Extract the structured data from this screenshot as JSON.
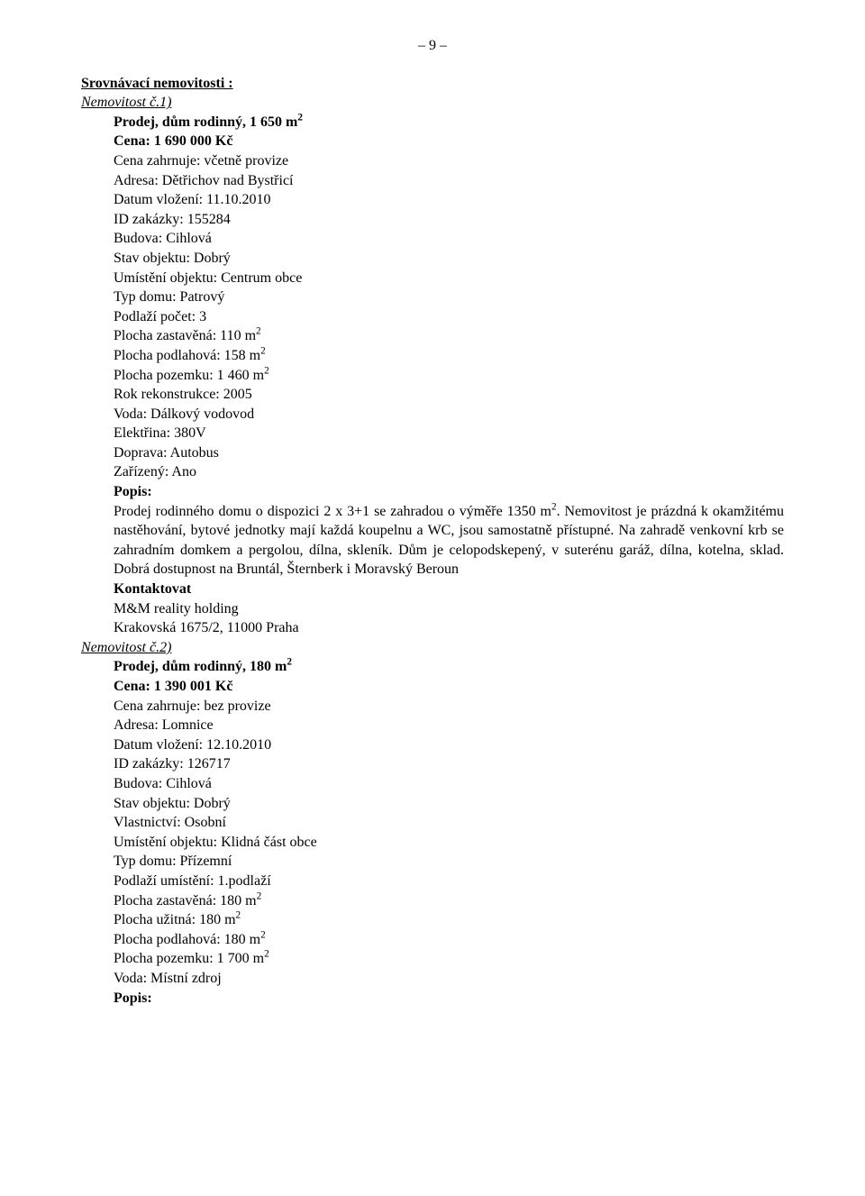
{
  "page_number": "– 9 –",
  "section_title": "Srovnávací nemovitosti :",
  "property1": {
    "heading": "Nemovitost č.1)",
    "title_prefix": "Prodej, dům rodinný, 1 650 m",
    "title_sup": "2",
    "price": "Cena: 1 690 000 Kč",
    "price_includes": "Cena zahrnuje: včetně provize",
    "address": "Adresa: Dětřichov nad Bystřicí",
    "date": "Datum vložení: 11.10.2010",
    "id": "ID zakázky: 155284",
    "building": "Budova: Cihlová",
    "condition": "Stav objektu: Dobrý",
    "location": "Umístění objektu: Centrum obce",
    "house_type": "Typ domu: Patrový",
    "floors": "Podlaží počet: 3",
    "built_area_prefix": "Plocha zastavěná: 110 m",
    "built_area_sup": "2",
    "floor_area_prefix": "Plocha podlahová: 158 m",
    "floor_area_sup": "2",
    "land_area_prefix": "Plocha pozemku: 1 460 m",
    "land_area_sup": "2",
    "reconstruction": "Rok rekonstrukce: 2005",
    "water": "Voda: Dálkový vodovod",
    "electricity": "Elektřina: 380V",
    "transport": "Doprava: Autobus",
    "furnished": "Zařízený: Ano",
    "desc_label": "Popis:",
    "desc_prefix": "Prodej rodinného domu o dispozici 2 x 3+1 se zahradou o výměře 1350 m",
    "desc_sup": "2",
    "desc_rest": ". Nemovitost je prázdná k okamžitému nastěhování, bytové jednotky mají každá koupelnu a WC, jsou samostatně přístupné. Na zahradě venkovní krb se zahradním domkem a pergolou, dílna, skleník. Dům je celopodskepený, v suterénu garáž, dílna, kotelna, sklad. Dobrá dostupnost na Bruntál, Šternberk i Moravský Beroun",
    "contact_label": "Kontaktovat",
    "contact_name": "M&M reality holding",
    "contact_address": "Krakovská 1675/2, 11000 Praha"
  },
  "property2": {
    "heading": "Nemovitost č.2)",
    "title_prefix": "Prodej, dům rodinný, 180 m",
    "title_sup": "2",
    "price": "Cena: 1 390 001 Kč",
    "price_includes": "Cena zahrnuje: bez provize",
    "address": "Adresa: Lomnice",
    "date": "Datum vložení: 12.10.2010",
    "id": "ID zakázky: 126717",
    "building": "Budova: Cihlová",
    "condition": "Stav objektu: Dobrý",
    "ownership": "Vlastnictví: Osobní",
    "location": "Umístění objektu: Klidná část obce",
    "house_type": "Typ domu: Přízemní",
    "floor_position": "Podlaží umístění: 1.podlaží",
    "built_area_prefix": "Plocha zastavěná: 180 m",
    "built_area_sup": "2",
    "usable_area_prefix": "Plocha užitná: 180 m",
    "usable_area_sup": "2",
    "floor_area_prefix": "Plocha podlahová: 180 m",
    "floor_area_sup": "2",
    "land_area_prefix": "Plocha pozemku: 1 700 m",
    "land_area_sup": "2",
    "water": "Voda: Místní zdroj",
    "desc_label": "Popis:"
  }
}
